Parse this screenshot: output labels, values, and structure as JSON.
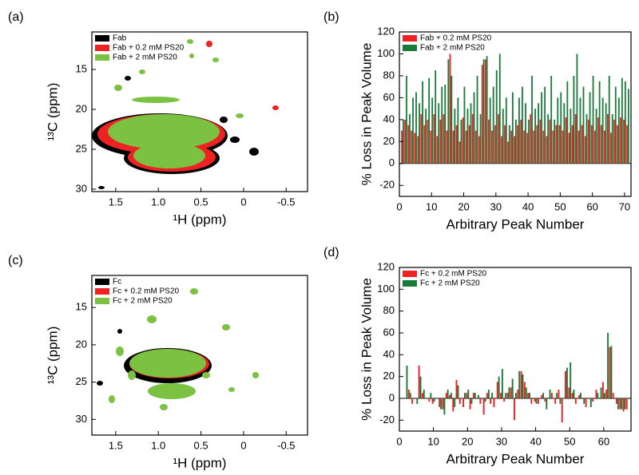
{
  "chart_data": [
    {
      "type": "contour",
      "panel_label": "(a)",
      "xlabel": "¹H (ppm)",
      "ylabel": "¹³C (ppm)",
      "xlim": [
        1.78,
        -0.75
      ],
      "xticks": [
        1.5,
        {
          "value": 1,
          "label": "1.0"
        },
        0.5,
        0,
        -0.5
      ],
      "ylim": [
        10.3,
        30.3
      ],
      "yticks": [
        15,
        20,
        25,
        30
      ],
      "legend": "upper left",
      "series": [
        {
          "name": "Fab",
          "color": "#000000"
        },
        {
          "name": "Fab + 0.2 mM PS20",
          "color": "#ee2222"
        },
        {
          "name": "Fab + 2 mM PS20",
          "color": "#7cc242"
        }
      ]
    },
    {
      "type": "bar",
      "panel_label": "(b)",
      "xlabel": "Arbitrary Peak Number",
      "ylabel": "% Loss in Peak Volume",
      "xlim": [
        0,
        72
      ],
      "xticks": [
        0,
        10,
        20,
        30,
        40,
        50,
        60,
        70
      ],
      "ylim": [
        -30,
        120
      ],
      "yticks": [
        -20,
        0,
        20,
        40,
        60,
        80,
        100,
        120
      ],
      "legend": "upper left",
      "x": [
        1,
        2,
        3,
        4,
        5,
        6,
        7,
        8,
        9,
        10,
        11,
        12,
        13,
        14,
        15,
        16,
        17,
        18,
        19,
        20,
        21,
        22,
        23,
        24,
        25,
        26,
        27,
        28,
        29,
        30,
        31,
        32,
        33,
        34,
        35,
        36,
        37,
        38,
        39,
        40,
        41,
        42,
        43,
        44,
        45,
        46,
        47,
        48,
        49,
        50,
        51,
        52,
        53,
        54,
        55,
        56,
        57,
        58,
        59,
        60,
        61,
        62,
        63,
        64,
        65,
        66,
        67,
        68,
        69,
        70,
        71
      ],
      "series": [
        {
          "name": "Fab + 0.2 mM PS20",
          "color": "#ee2222",
          "values": [
            30,
            40,
            35,
            30,
            28,
            25,
            45,
            35,
            40,
            30,
            45,
            25,
            40,
            45,
            30,
            100,
            30,
            35,
            20,
            42,
            30,
            35,
            45,
            30,
            25,
            90,
            95,
            40,
            30,
            35,
            45,
            25,
            35,
            20,
            30,
            25,
            35,
            40,
            30,
            28,
            45,
            30,
            35,
            40,
            30,
            25,
            40,
            30,
            35,
            35,
            30,
            42,
            28,
            35,
            45,
            30,
            35,
            25,
            40,
            35,
            30,
            42,
            35,
            30,
            45,
            28,
            40,
            35,
            42,
            40,
            35
          ]
        },
        {
          "name": "Fab + 2 mM PS20",
          "color": "#1a7a3a",
          "values": [
            40,
            80,
            45,
            60,
            65,
            55,
            75,
            50,
            78,
            60,
            85,
            55,
            70,
            72,
            95,
            80,
            50,
            60,
            40,
            70,
            50,
            55,
            65,
            80,
            45,
            95,
            98,
            60,
            70,
            85,
            100,
            50,
            60,
            35,
            65,
            40,
            60,
            70,
            55,
            40,
            80,
            50,
            55,
            65,
            70,
            45,
            80,
            40,
            60,
            65,
            55,
            75,
            50,
            80,
            100,
            60,
            70,
            45,
            65,
            80,
            50,
            75,
            60,
            55,
            80,
            45,
            70,
            60,
            78,
            75,
            68
          ]
        }
      ]
    },
    {
      "type": "contour",
      "panel_label": "(c)",
      "xlabel": "¹H (ppm)",
      "ylabel": "¹³C (ppm)",
      "xlim": [
        1.78,
        -0.75
      ],
      "xticks": [
        1.5,
        {
          "value": 1,
          "label": "1.0"
        },
        0.5,
        0,
        -0.5
      ],
      "ylim": [
        10.7,
        32.1
      ],
      "yticks": [
        15,
        20,
        25,
        30
      ],
      "legend": "upper left",
      "series": [
        {
          "name": "Fc",
          "color": "#000000"
        },
        {
          "name": "Fc + 0.2 mM PS20",
          "color": "#ee2222"
        },
        {
          "name": "Fc + 2 mM PS20",
          "color": "#7cc242"
        }
      ]
    },
    {
      "type": "bar",
      "panel_label": "(d)",
      "xlabel": "Arbitrary Peak Number",
      "ylabel": "% Loss in Peak Volume",
      "xlim": [
        0,
        68
      ],
      "xticks": [
        0,
        10,
        20,
        30,
        40,
        50,
        60
      ],
      "ylim": [
        -30,
        120
      ],
      "yticks": [
        -20,
        0,
        20,
        40,
        60,
        80,
        100,
        120
      ],
      "legend": "upper left",
      "x": [
        1,
        2,
        3,
        4,
        5,
        6,
        7,
        8,
        9,
        10,
        11,
        12,
        13,
        14,
        15,
        16,
        17,
        18,
        19,
        20,
        21,
        22,
        23,
        24,
        25,
        26,
        27,
        28,
        29,
        30,
        31,
        32,
        33,
        34,
        35,
        36,
        37,
        38,
        39,
        40,
        41,
        42,
        43,
        44,
        45,
        46,
        47,
        48,
        49,
        50,
        51,
        52,
        53,
        54,
        55,
        56,
        57,
        58,
        59,
        60,
        61,
        62,
        63,
        64,
        65,
        66,
        67
      ],
      "series": [
        {
          "name": "Fc + 0.2 mM PS20",
          "color": "#ee2222",
          "values": [
            0,
            0,
            8,
            -5,
            0,
            30,
            5,
            0,
            -3,
            -5,
            0,
            -8,
            -10,
            5,
            3,
            -12,
            17,
            -5,
            -8,
            5,
            -10,
            5,
            0,
            -5,
            -15,
            5,
            -5,
            -8,
            15,
            5,
            -3,
            5,
            10,
            -20,
            8,
            25,
            15,
            5,
            -5,
            -3,
            -5,
            3,
            -3,
            0,
            5,
            -5,
            8,
            -22,
            25,
            10,
            5,
            -5,
            3,
            0,
            -8,
            0,
            -3,
            8,
            0,
            15,
            8,
            47,
            5,
            -5,
            -10,
            -12,
            -10
          ]
        },
        {
          "name": "Fc + 2 mM PS20",
          "color": "#1a7a3a",
          "values": [
            0,
            30,
            5,
            0,
            -5,
            20,
            8,
            0,
            5,
            -3,
            0,
            -10,
            -15,
            8,
            5,
            -8,
            12,
            0,
            5,
            8,
            -5,
            5,
            3,
            0,
            -3,
            8,
            5,
            0,
            20,
            27,
            5,
            10,
            18,
            5,
            25,
            22,
            10,
            5,
            0,
            -5,
            0,
            5,
            -10,
            8,
            0,
            5,
            -5,
            0,
            28,
            33,
            8,
            0,
            5,
            -5,
            0,
            -8,
            0,
            5,
            10,
            5,
            60,
            48,
            0,
            -10,
            -10,
            -10,
            0
          ]
        }
      ]
    }
  ]
}
